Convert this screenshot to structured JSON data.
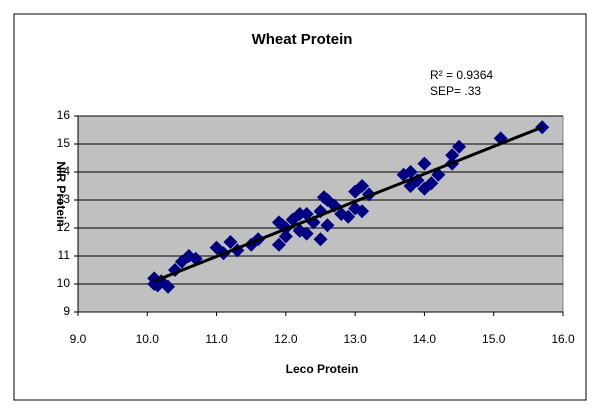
{
  "chart_data": {
    "type": "scatter",
    "title": "Wheat Protein",
    "xlabel": "Leco Protein",
    "ylabel": "NIR Protein",
    "annotations": [
      "R² = 0.9364",
      "SEP= .33"
    ],
    "color": "#000080",
    "grid": true,
    "xlim": [
      9,
      16
    ],
    "ylim": [
      9,
      16
    ],
    "xticks": [
      {
        "value": 9,
        "label": "9.0"
      },
      {
        "value": 10,
        "label": "10.0"
      },
      {
        "value": 11,
        "label": "11.0"
      },
      {
        "value": 12,
        "label": "12.0"
      },
      {
        "value": 13,
        "label": "13.0"
      },
      {
        "value": 14,
        "label": "14.0"
      },
      {
        "value": 15,
        "label": "15.0"
      },
      {
        "value": 16,
        "label": "16.0"
      }
    ],
    "yticks": [
      9,
      10,
      11,
      12,
      13,
      14,
      15,
      16
    ],
    "x": [
      10.1,
      10.1,
      10.15,
      10.2,
      10.3,
      10.4,
      10.5,
      10.6,
      10.7,
      11.0,
      11.1,
      11.2,
      11.3,
      11.5,
      11.6,
      11.9,
      11.9,
      12.0,
      12.0,
      12.1,
      12.2,
      12.3,
      12.3,
      12.4,
      12.5,
      12.5,
      12.6,
      12.6,
      12.7,
      12.8,
      12.9,
      13.0,
      13.0,
      13.1,
      13.1,
      13.2,
      13.7,
      13.8,
      13.8,
      13.9,
      14.0,
      14.0,
      14.1,
      14.2,
      14.4,
      14.4,
      14.5,
      15.1,
      15.7,
      12.2,
      11.95,
      12.55
    ],
    "values": [
      10.0,
      10.2,
      9.95,
      10.1,
      9.9,
      10.5,
      10.8,
      11.0,
      10.9,
      11.3,
      11.1,
      11.5,
      11.2,
      11.4,
      11.6,
      11.4,
      12.2,
      11.7,
      12.0,
      12.3,
      11.9,
      12.5,
      11.8,
      12.2,
      11.6,
      12.6,
      12.1,
      13.0,
      12.8,
      12.5,
      12.4,
      12.7,
      13.3,
      12.6,
      13.5,
      13.2,
      13.9,
      13.5,
      14.0,
      13.7,
      13.4,
      14.3,
      13.6,
      13.9,
      14.3,
      14.6,
      14.9,
      15.2,
      15.6,
      12.5,
      12.1,
      13.1
    ],
    "trendline": {
      "x": [
        10.1,
        15.7
      ],
      "y": [
        10.1,
        15.6
      ]
    }
  }
}
